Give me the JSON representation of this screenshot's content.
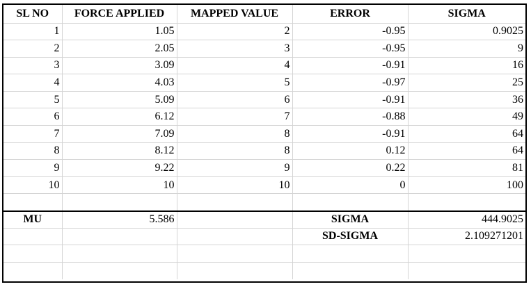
{
  "headers": [
    "SL NO",
    "FORCE APPLIED",
    "MAPPED VALUE",
    "ERROR",
    "SIGMA"
  ],
  "rows": [
    [
      "1",
      "1.05",
      "2",
      "-0.95",
      "0.9025"
    ],
    [
      "2",
      "2.05",
      "3",
      "-0.95",
      "9"
    ],
    [
      "3",
      "3.09",
      "4",
      "-0.91",
      "16"
    ],
    [
      "4",
      "4.03",
      "5",
      "-0.97",
      "25"
    ],
    [
      "5",
      "5.09",
      "6",
      "-0.91",
      "36"
    ],
    [
      "6",
      "6.12",
      "7",
      "-0.88",
      "49"
    ],
    [
      "7",
      "7.09",
      "8",
      "-0.91",
      "64"
    ],
    [
      "8",
      "8.12",
      "8",
      "0.12",
      "64"
    ],
    [
      "9",
      "9.22",
      "9",
      "0.22",
      "81"
    ],
    [
      "10",
      "10",
      "10",
      "0",
      "100"
    ]
  ],
  "summary": {
    "mu_label": "MU",
    "mu_value": "5.586",
    "sigma_label": "SIGMA",
    "sigma_value": "444.9025",
    "sd_sigma_label": "SD-SIGMA",
    "sd_sigma_value": "2.109271201"
  }
}
